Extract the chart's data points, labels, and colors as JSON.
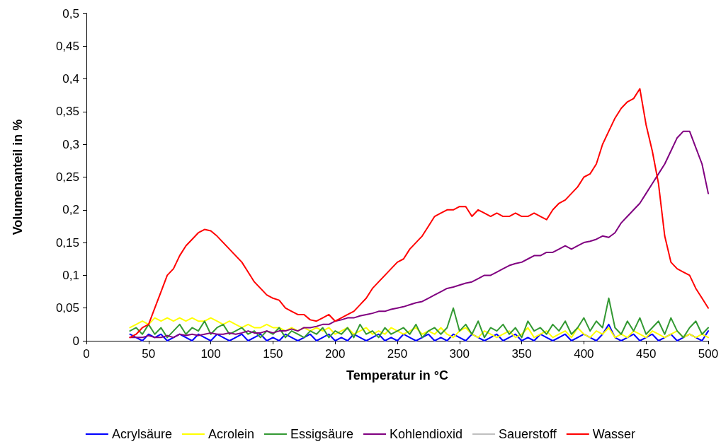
{
  "chart_data": {
    "type": "line",
    "xlabel": "Temperatur in °C",
    "ylabel": "Volumenanteil in %",
    "x": [
      35,
      40,
      45,
      50,
      55,
      60,
      65,
      70,
      75,
      80,
      85,
      90,
      95,
      100,
      105,
      110,
      115,
      120,
      125,
      130,
      135,
      140,
      145,
      150,
      155,
      160,
      165,
      170,
      175,
      180,
      185,
      190,
      195,
      200,
      205,
      210,
      215,
      220,
      225,
      230,
      235,
      240,
      245,
      250,
      255,
      260,
      265,
      270,
      275,
      280,
      285,
      290,
      295,
      300,
      305,
      310,
      315,
      320,
      325,
      330,
      335,
      340,
      345,
      350,
      355,
      360,
      365,
      370,
      375,
      380,
      385,
      390,
      395,
      400,
      405,
      410,
      415,
      420,
      425,
      430,
      435,
      440,
      445,
      450,
      455,
      460,
      465,
      470,
      475,
      480,
      485,
      490,
      495,
      500
    ],
    "series": [
      {
        "name": "Acrylsäure",
        "color": "#0000ff",
        "values": [
          0.01,
          0.005,
          0.0,
          0.01,
          0.005,
          0.01,
          0.0,
          0.005,
          0.01,
          0.005,
          0.0,
          0.01,
          0.005,
          0.0,
          0.01,
          0.005,
          0.0,
          0.005,
          0.01,
          0.0,
          0.005,
          0.01,
          0.0,
          0.005,
          0.0,
          0.01,
          0.005,
          0.0,
          0.005,
          0.01,
          0.0,
          0.005,
          0.01,
          0.0,
          0.005,
          0.0,
          0.01,
          0.005,
          0.0,
          0.005,
          0.01,
          0.0,
          0.005,
          0.0,
          0.01,
          0.005,
          0.0,
          0.005,
          0.01,
          0.0,
          0.005,
          0.0,
          0.01,
          0.005,
          0.0,
          0.01,
          0.005,
          0.0,
          0.005,
          0.01,
          0.0,
          0.005,
          0.01,
          0.0,
          0.005,
          0.0,
          0.01,
          0.005,
          0.0,
          0.005,
          0.01,
          0.0,
          0.005,
          0.01,
          0.005,
          0.0,
          0.01,
          0.025,
          0.005,
          0.0,
          0.005,
          0.01,
          0.0,
          0.005,
          0.01,
          0.0,
          0.005,
          0.01,
          0.0,
          0.005,
          0.01,
          0.005,
          0.0,
          0.015
        ]
      },
      {
        "name": "Acrolein",
        "color": "#ffff00",
        "values": [
          0.02,
          0.025,
          0.03,
          0.025,
          0.035,
          0.03,
          0.035,
          0.03,
          0.035,
          0.03,
          0.035,
          0.03,
          0.03,
          0.035,
          0.03,
          0.025,
          0.03,
          0.025,
          0.02,
          0.025,
          0.02,
          0.02,
          0.025,
          0.02,
          0.02,
          0.015,
          0.02,
          0.015,
          0.02,
          0.015,
          0.02,
          0.015,
          0.02,
          0.01,
          0.015,
          0.02,
          0.01,
          0.015,
          0.02,
          0.01,
          0.015,
          0.01,
          0.02,
          0.015,
          0.01,
          0.015,
          0.02,
          0.01,
          0.015,
          0.01,
          0.02,
          0.01,
          0.005,
          0.015,
          0.02,
          0.01,
          0.005,
          0.015,
          0.01,
          0.005,
          0.01,
          0.015,
          0.005,
          0.01,
          0.02,
          0.005,
          0.01,
          0.015,
          0.005,
          0.01,
          0.015,
          0.005,
          0.02,
          0.01,
          0.005,
          0.015,
          0.01,
          0.02,
          0.005,
          0.01,
          0.005,
          0.015,
          0.01,
          0.005,
          0.015,
          0.01,
          0.005,
          0.01,
          0.015,
          0.005,
          0.01,
          0.005,
          0.01,
          0.005
        ]
      },
      {
        "name": "Essigsäure",
        "color": "#339933",
        "values": [
          0.015,
          0.02,
          0.01,
          0.025,
          0.01,
          0.02,
          0.005,
          0.015,
          0.025,
          0.01,
          0.02,
          0.015,
          0.03,
          0.01,
          0.02,
          0.025,
          0.01,
          0.015,
          0.02,
          0.01,
          0.015,
          0.005,
          0.015,
          0.01,
          0.02,
          0.005,
          0.015,
          0.01,
          0.005,
          0.015,
          0.01,
          0.02,
          0.005,
          0.015,
          0.01,
          0.02,
          0.005,
          0.025,
          0.01,
          0.015,
          0.005,
          0.02,
          0.01,
          0.015,
          0.02,
          0.01,
          0.025,
          0.005,
          0.015,
          0.02,
          0.01,
          0.02,
          0.05,
          0.015,
          0.025,
          0.01,
          0.03,
          0.005,
          0.02,
          0.015,
          0.025,
          0.01,
          0.02,
          0.005,
          0.03,
          0.015,
          0.02,
          0.01,
          0.025,
          0.015,
          0.03,
          0.01,
          0.02,
          0.035,
          0.015,
          0.03,
          0.02,
          0.065,
          0.02,
          0.01,
          0.03,
          0.015,
          0.035,
          0.01,
          0.02,
          0.03,
          0.01,
          0.035,
          0.015,
          0.005,
          0.02,
          0.03,
          0.01,
          0.02
        ]
      },
      {
        "name": "Kohlendioxid",
        "color": "#800080",
        "values": [
          0.005,
          0.005,
          0.005,
          0.008,
          0.005,
          0.005,
          0.008,
          0.005,
          0.01,
          0.008,
          0.01,
          0.008,
          0.01,
          0.012,
          0.01,
          0.01,
          0.012,
          0.01,
          0.012,
          0.015,
          0.012,
          0.012,
          0.015,
          0.012,
          0.015,
          0.015,
          0.018,
          0.015,
          0.02,
          0.02,
          0.022,
          0.025,
          0.025,
          0.03,
          0.032,
          0.035,
          0.035,
          0.038,
          0.04,
          0.042,
          0.045,
          0.045,
          0.048,
          0.05,
          0.052,
          0.055,
          0.058,
          0.06,
          0.065,
          0.07,
          0.075,
          0.08,
          0.082,
          0.085,
          0.088,
          0.09,
          0.095,
          0.1,
          0.1,
          0.105,
          0.11,
          0.115,
          0.118,
          0.12,
          0.125,
          0.13,
          0.13,
          0.135,
          0.135,
          0.14,
          0.145,
          0.14,
          0.145,
          0.15,
          0.152,
          0.155,
          0.16,
          0.158,
          0.165,
          0.18,
          0.19,
          0.2,
          0.21,
          0.225,
          0.24,
          0.255,
          0.27,
          0.29,
          0.31,
          0.32,
          0.32,
          0.295,
          0.27,
          0.225
        ]
      },
      {
        "name": "Sauerstoff",
        "color": "#c0c0c0",
        "values": [
          null,
          null,
          null,
          null,
          null,
          null,
          null,
          null,
          null,
          null,
          null,
          null,
          null,
          null,
          null,
          null,
          null,
          null,
          null,
          null,
          null,
          null,
          null,
          null,
          null,
          null,
          null,
          null,
          null,
          null,
          null,
          null,
          null,
          null,
          null,
          null,
          null,
          null,
          null,
          null,
          null,
          null,
          null,
          null,
          null,
          null,
          null,
          null,
          null,
          null,
          null,
          null,
          null,
          null,
          null,
          null,
          null,
          null,
          null,
          null,
          null,
          null,
          null,
          null,
          null,
          null,
          null,
          null,
          null,
          null,
          null,
          null,
          null,
          null,
          null,
          null,
          null,
          null,
          null,
          null,
          null,
          null,
          null,
          null,
          null,
          null,
          null,
          null,
          null,
          null,
          null,
          null,
          null,
          null
        ]
      },
      {
        "name": "Wasser",
        "color": "#ff0000",
        "values": [
          0.005,
          0.01,
          0.02,
          0.025,
          0.05,
          0.075,
          0.1,
          0.11,
          0.13,
          0.145,
          0.155,
          0.165,
          0.17,
          0.168,
          0.16,
          0.15,
          0.14,
          0.13,
          0.12,
          0.105,
          0.09,
          0.08,
          0.07,
          0.065,
          0.062,
          0.05,
          0.045,
          0.04,
          0.04,
          0.032,
          0.03,
          0.035,
          0.04,
          0.03,
          0.035,
          0.04,
          0.045,
          0.055,
          0.065,
          0.08,
          0.09,
          0.1,
          0.11,
          0.12,
          0.125,
          0.14,
          0.15,
          0.16,
          0.175,
          0.19,
          0.195,
          0.2,
          0.2,
          0.205,
          0.205,
          0.19,
          0.2,
          0.195,
          0.19,
          0.195,
          0.19,
          0.19,
          0.195,
          0.19,
          0.19,
          0.195,
          0.19,
          0.185,
          0.2,
          0.21,
          0.215,
          0.225,
          0.235,
          0.25,
          0.255,
          0.27,
          0.3,
          0.32,
          0.34,
          0.355,
          0.365,
          0.37,
          0.385,
          0.33,
          0.29,
          0.24,
          0.16,
          0.12,
          0.11,
          0.105,
          0.1,
          0.08,
          0.065,
          0.05
        ]
      }
    ],
    "xlim": [
      0,
      500
    ],
    "xticks": [
      0,
      50,
      100,
      150,
      200,
      250,
      300,
      350,
      400,
      450,
      500
    ],
    "ylim": [
      0,
      0.5
    ],
    "yticks": [
      0,
      {
        "value": 0.05,
        "label": "0,05"
      },
      {
        "value": 0.1,
        "label": "0,1"
      },
      {
        "value": 0.15,
        "label": "0,15"
      },
      {
        "value": 0.2,
        "label": "0,2"
      },
      {
        "value": 0.25,
        "label": "0,25"
      },
      {
        "value": 0.3,
        "label": "0,3"
      },
      {
        "value": 0.35,
        "label": "0,35"
      },
      {
        "value": 0.4,
        "label": "0,4"
      },
      {
        "value": 0.45,
        "label": "0,45"
      },
      {
        "value": 0.5,
        "label": "0,5"
      }
    ],
    "grid": false,
    "legend": "bottom",
    "marker": "none",
    "line_style": "solid"
  }
}
